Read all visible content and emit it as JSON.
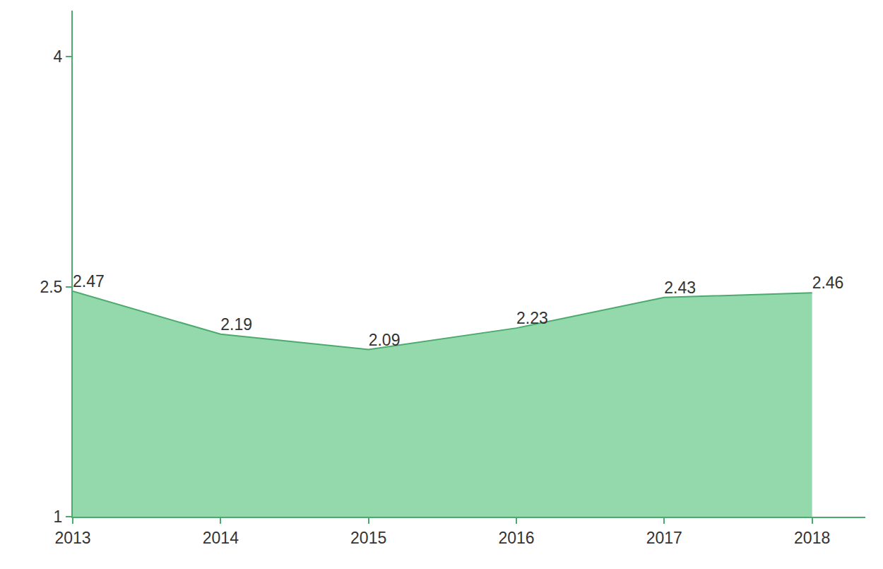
{
  "chart_data": {
    "type": "area",
    "x": [
      2013,
      2014,
      2015,
      2016,
      2017,
      2018
    ],
    "values": [
      2.47,
      2.19,
      2.09,
      2.23,
      2.43,
      2.46
    ],
    "color": "#4daa6e",
    "xlim": [
      2013,
      2018.36
    ],
    "xticks": [
      2013,
      2014,
      2015,
      2016,
      2017,
      2018
    ],
    "ylim": [
      1,
      4.3
    ],
    "yticks": [
      1,
      2.5,
      4
    ],
    "grid": false,
    "data_labels": true
  }
}
